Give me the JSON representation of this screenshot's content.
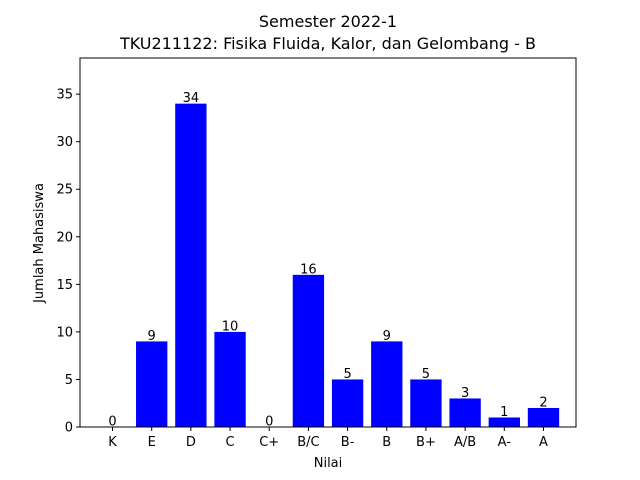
{
  "chart_data": {
    "type": "bar",
    "title": "Semester 2022-1",
    "subtitle": "TKU211122: Fisika Fluida, Kalor, dan Gelombang - B",
    "xlabel": "Nilai",
    "ylabel": "Jumlah Mahasiswa",
    "categories": [
      "K",
      "E",
      "D",
      "C",
      "C+",
      "B/C",
      "B-",
      "B",
      "B+",
      "A/B",
      "A-",
      "A"
    ],
    "values": [
      0,
      9,
      34,
      10,
      0,
      16,
      5,
      9,
      5,
      3,
      1,
      2
    ],
    "ylim": [
      0,
      38.8
    ],
    "yticks": [
      0,
      5,
      10,
      15,
      20,
      25,
      30,
      35
    ],
    "bar_color": "#0000ff",
    "grid": false,
    "legend": "none"
  }
}
